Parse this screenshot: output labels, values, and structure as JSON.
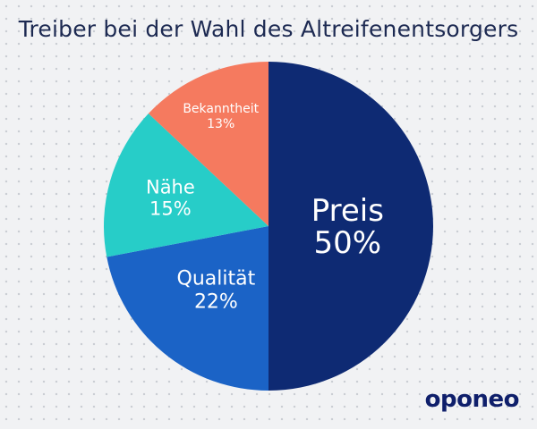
{
  "chart_data": {
    "type": "pie",
    "title": "Treiber bei der Wahl des Altreifenentsorgers",
    "slices": [
      {
        "label": "Preis",
        "value": 50,
        "value_label": "50%",
        "color": "#0e2a73"
      },
      {
        "label": "Qualität",
        "value": 22,
        "value_label": "22%",
        "color": "#1b63c6"
      },
      {
        "label": "Nähe",
        "value": 15,
        "value_label": "15%",
        "color": "#27cdc8"
      },
      {
        "label": "Bekanntheit",
        "value": 13,
        "value_label": "13%",
        "color": "#f57a5f"
      }
    ]
  },
  "brand": {
    "logo_text": "oponeo"
  }
}
